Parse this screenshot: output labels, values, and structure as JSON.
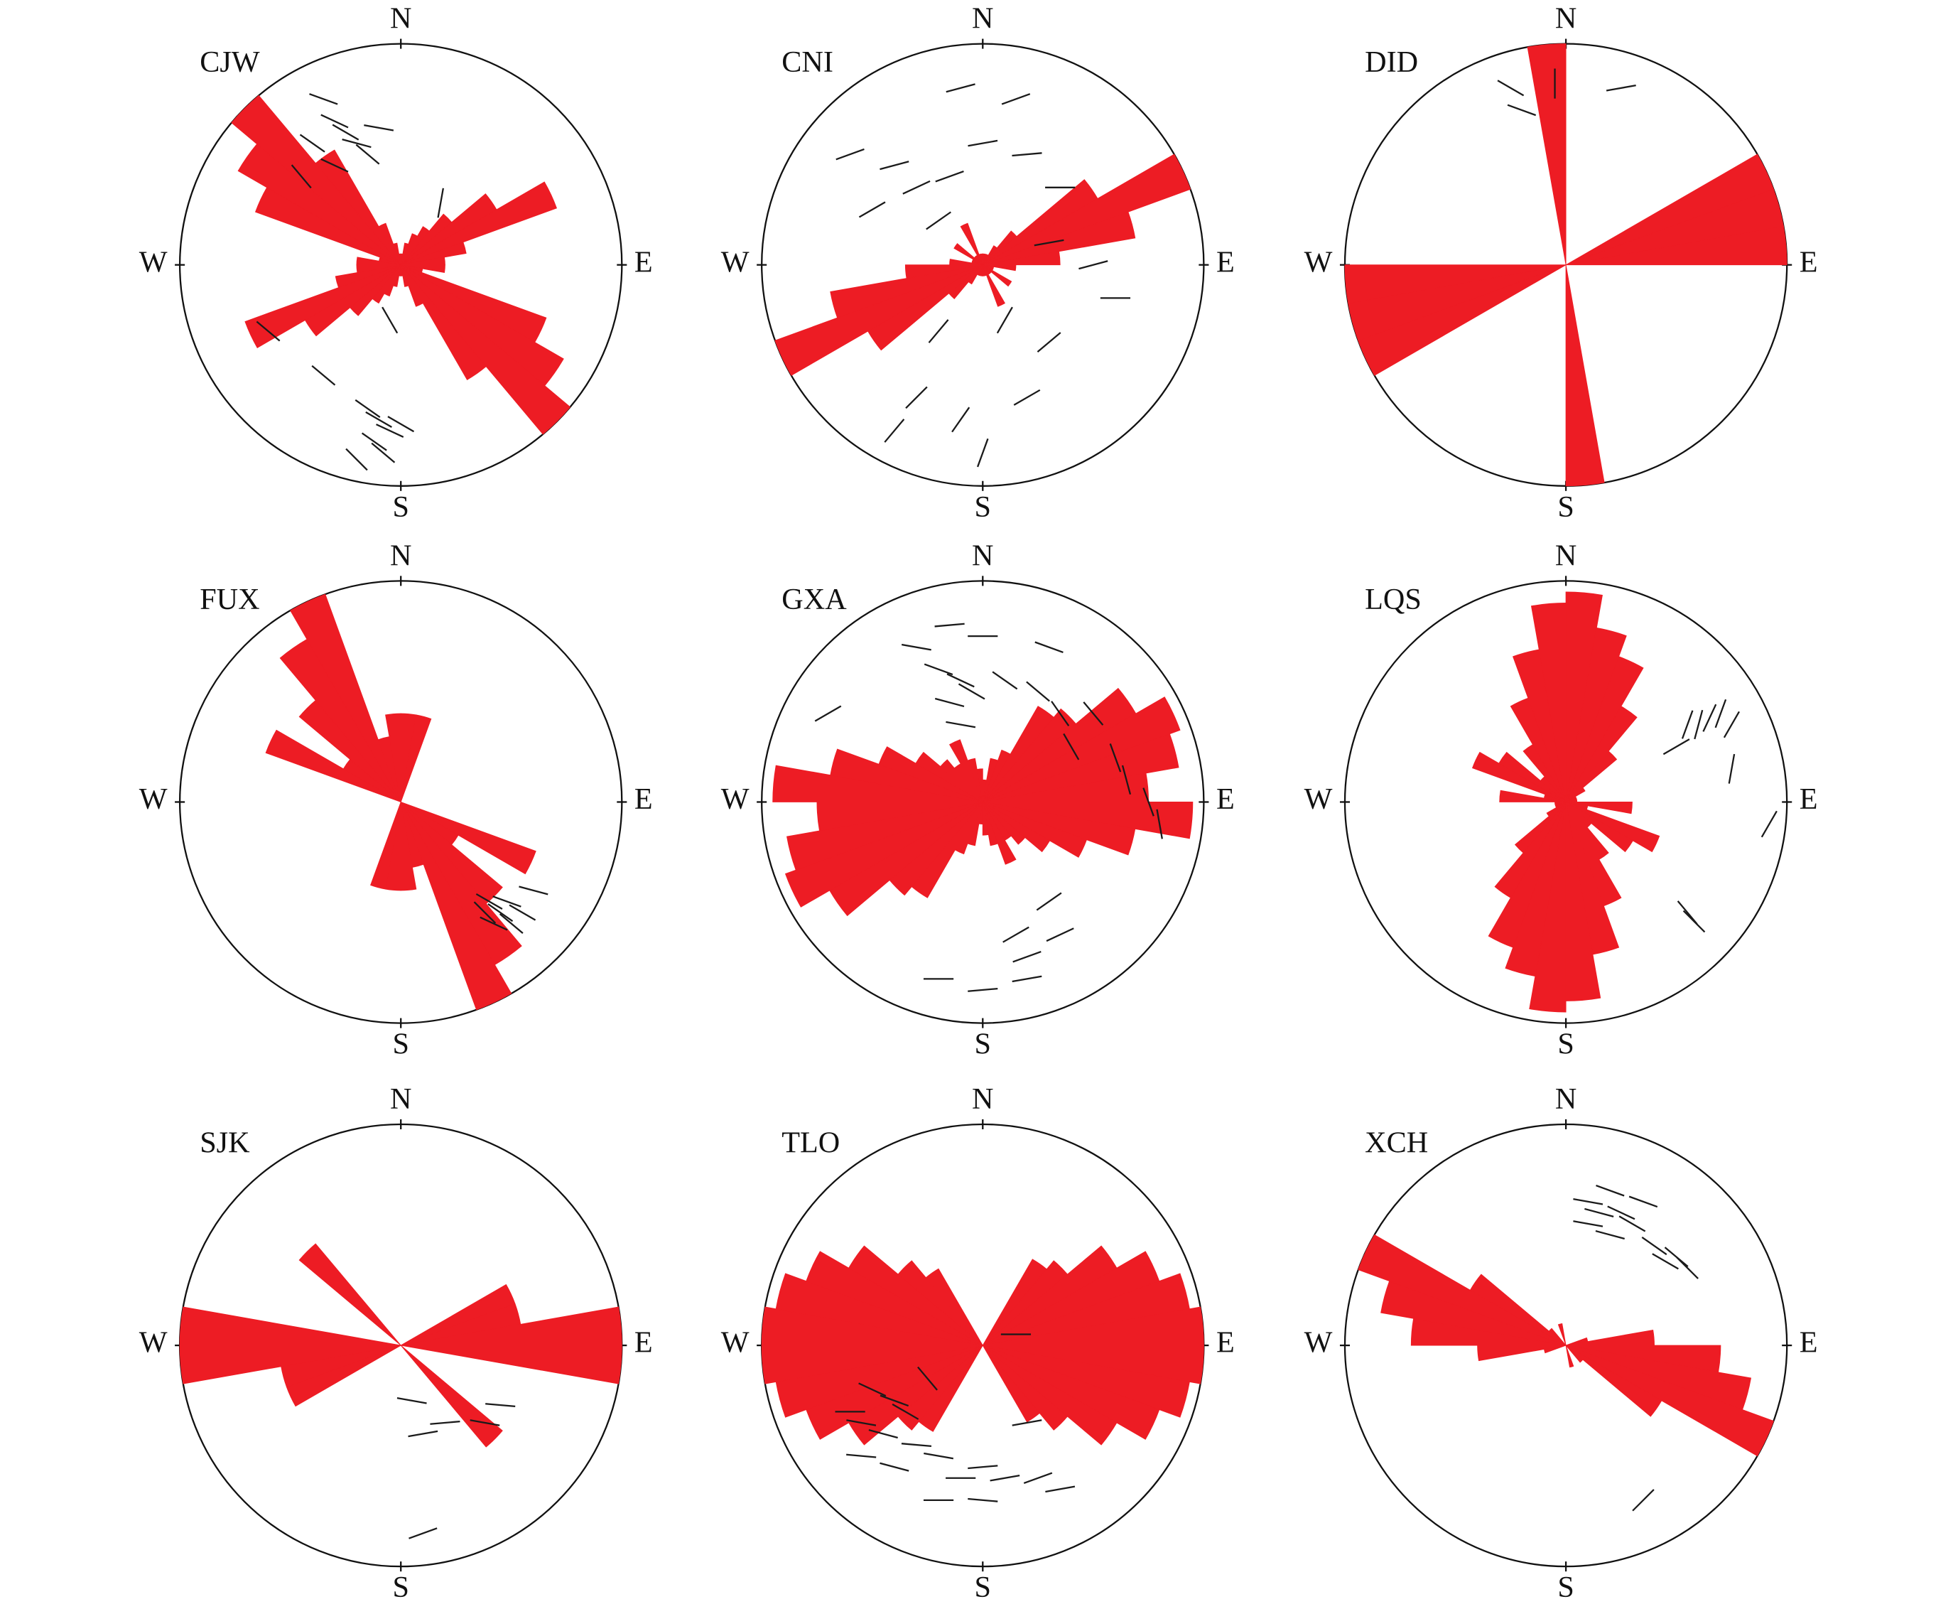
{
  "chart_data": [
    {
      "type": "rose",
      "title": "CJW",
      "compass": [
        "N",
        "E",
        "S",
        "W"
      ],
      "bin_width": 10,
      "color": "#ed1c24",
      "tick_color": "#1a1a1a",
      "radii": [
        0.05,
        0.1,
        0.15,
        0.2,
        0.3,
        0.5,
        0.75,
        0.3,
        0.2,
        0.2,
        0.1,
        0.7,
        0.85,
        1.0,
        0.6,
        0.2,
        0.1,
        0.05
      ],
      "ticks": [
        [
          -0.35,
          0.75,
          110
        ],
        [
          -0.3,
          0.65,
          115
        ],
        [
          -0.25,
          0.6,
          120
        ],
        [
          -0.2,
          0.55,
          105
        ],
        [
          -0.4,
          0.55,
          125
        ],
        [
          -0.15,
          0.5,
          130
        ],
        [
          -0.3,
          0.45,
          115
        ],
        [
          -0.1,
          0.62,
          100
        ],
        [
          -0.45,
          0.4,
          140
        ],
        [
          0.18,
          0.28,
          10
        ],
        [
          -0.05,
          -0.25,
          150
        ],
        [
          -0.35,
          -0.5,
          130
        ],
        [
          -0.15,
          -0.65,
          125
        ],
        [
          -0.1,
          -0.7,
          120
        ],
        [
          -0.05,
          -0.75,
          115
        ],
        [
          -0.12,
          -0.8,
          125
        ],
        [
          -0.08,
          -0.85,
          130
        ],
        [
          0.0,
          -0.72,
          120
        ],
        [
          -0.2,
          -0.88,
          135
        ],
        [
          -0.6,
          -0.3,
          130
        ]
      ]
    },
    {
      "type": "rose",
      "title": "CNI",
      "compass": [
        "N",
        "E",
        "S",
        "W"
      ],
      "bin_width": 10,
      "color": "#ed1c24",
      "tick_color": "#1a1a1a",
      "radii": [
        0.05,
        0.05,
        0.05,
        0.1,
        0.2,
        0.6,
        1.0,
        0.7,
        0.35,
        0.15,
        0.05,
        0.05,
        0.15,
        0.05,
        0.05,
        0.2,
        0.05,
        0.05
      ],
      "ticks": [
        [
          -0.6,
          0.5,
          70
        ],
        [
          -0.4,
          0.45,
          75
        ],
        [
          -0.3,
          0.35,
          65
        ],
        [
          -0.15,
          0.4,
          70
        ],
        [
          0.0,
          0.55,
          80
        ],
        [
          0.2,
          0.5,
          85
        ],
        [
          0.35,
          0.35,
          90
        ],
        [
          -0.5,
          0.25,
          60
        ],
        [
          -0.2,
          0.2,
          55
        ],
        [
          0.3,
          0.1,
          80
        ],
        [
          0.5,
          0.0,
          75
        ],
        [
          0.6,
          -0.15,
          90
        ],
        [
          -0.2,
          -0.3,
          40
        ],
        [
          0.1,
          -0.25,
          30
        ],
        [
          0.3,
          -0.35,
          50
        ],
        [
          -0.3,
          -0.6,
          45
        ],
        [
          -0.1,
          -0.7,
          35
        ],
        [
          0.2,
          -0.6,
          60
        ],
        [
          -0.4,
          -0.75,
          40
        ],
        [
          0.0,
          -0.85,
          20
        ],
        [
          -0.1,
          0.8,
          75
        ],
        [
          0.15,
          0.75,
          70
        ]
      ]
    },
    {
      "type": "rose",
      "title": "DID",
      "compass": [
        "N",
        "E",
        "S",
        "W"
      ],
      "bin_width": 10,
      "color": "#ed1c24",
      "tick_color": "#1a1a1a",
      "radii": [
        0,
        0,
        0,
        0,
        0,
        0,
        1,
        1,
        1,
        0,
        0,
        0,
        0,
        0,
        0,
        0,
        0,
        1
      ],
      "ticks": [
        [
          -0.25,
          0.8,
          120
        ],
        [
          -0.05,
          0.82,
          0
        ],
        [
          0.25,
          0.8,
          80
        ],
        [
          -0.2,
          0.7,
          110
        ]
      ]
    },
    {
      "type": "rose",
      "title": "FUX",
      "compass": [
        "N",
        "E",
        "S",
        "W"
      ],
      "bin_width": 10,
      "color": "#ed1c24",
      "tick_color": "#1a1a1a",
      "radii": [
        0.4,
        0.4,
        0,
        0,
        0,
        0,
        0,
        0,
        0,
        0,
        0,
        0.65,
        0.3,
        0.6,
        0.85,
        1.0,
        0.3,
        0.4
      ],
      "ticks": [
        [
          0.4,
          -0.45,
          120
        ],
        [
          0.45,
          -0.5,
          125
        ],
        [
          0.5,
          -0.55,
          130
        ],
        [
          0.42,
          -0.55,
          115
        ],
        [
          0.48,
          -0.45,
          110
        ],
        [
          0.55,
          -0.5,
          120
        ],
        [
          0.6,
          -0.4,
          105
        ],
        [
          0.38,
          -0.5,
          135
        ]
      ]
    },
    {
      "type": "rose",
      "title": "GXA",
      "compass": [
        "N",
        "E",
        "S",
        "W"
      ],
      "bin_width": 10,
      "color": "#ed1c24",
      "tick_color": "#1a1a1a",
      "radii": [
        0.1,
        0.2,
        0.25,
        0.5,
        0.55,
        0.8,
        0.95,
        0.9,
        0.75,
        0.95,
        0.7,
        0.5,
        0.35,
        0.25,
        0.2,
        0.3,
        0.2,
        0.15
      ],
      "ticks": [
        [
          -0.2,
          0.6,
          110
        ],
        [
          -0.1,
          0.55,
          115
        ],
        [
          -0.15,
          0.45,
          105
        ],
        [
          -0.05,
          0.5,
          120
        ],
        [
          0.1,
          0.55,
          125
        ],
        [
          0.25,
          0.5,
          130
        ],
        [
          0.35,
          0.4,
          145
        ],
        [
          0.4,
          0.25,
          150
        ],
        [
          0.6,
          0.2,
          160
        ],
        [
          0.65,
          0.1,
          165
        ],
        [
          0.75,
          0.0,
          160
        ],
        [
          0.8,
          -0.1,
          170
        ],
        [
          -0.3,
          0.7,
          100
        ],
        [
          0.0,
          0.75,
          90
        ],
        [
          -0.15,
          0.8,
          85
        ],
        [
          0.3,
          0.7,
          110
        ],
        [
          0.15,
          -0.6,
          60
        ],
        [
          0.3,
          -0.45,
          55
        ],
        [
          0.35,
          -0.6,
          65
        ],
        [
          0.2,
          -0.7,
          70
        ],
        [
          -0.2,
          -0.8,
          90
        ],
        [
          0.0,
          -0.85,
          85
        ],
        [
          0.2,
          -0.8,
          80
        ],
        [
          -0.1,
          0.35,
          100
        ],
        [
          0.5,
          0.4,
          140
        ],
        [
          -0.7,
          0.4,
          60
        ]
      ]
    },
    {
      "type": "rose",
      "title": "LQS",
      "compass": [
        "N",
        "E",
        "S",
        "W"
      ],
      "bin_width": 10,
      "color": "#ed1c24",
      "tick_color": "#1a1a1a",
      "radii": [
        0.95,
        0.8,
        0.7,
        0.5,
        0.3,
        0.1,
        0.05,
        0.05,
        0.05,
        0.3,
        0.1,
        0.45,
        0.35,
        0.15,
        0.3,
        0.5,
        0.7,
        0.9
      ],
      "ticks": [
        [
          0.55,
          0.35,
          20
        ],
        [
          0.6,
          0.35,
          15
        ],
        [
          0.65,
          0.38,
          25
        ],
        [
          0.7,
          0.4,
          20
        ],
        [
          0.75,
          0.35,
          30
        ],
        [
          0.5,
          0.25,
          60
        ],
        [
          0.75,
          0.15,
          10
        ],
        [
          0.92,
          -0.1,
          30
        ],
        [
          0.55,
          -0.5,
          140
        ],
        [
          0.58,
          -0.54,
          135
        ]
      ]
    },
    {
      "type": "rose",
      "title": "SJK",
      "compass": [
        "N",
        "E",
        "S",
        "W"
      ],
      "bin_width": 10,
      "color": "#ed1c24",
      "tick_color": "#1a1a1a",
      "radii": [
        0,
        0,
        0,
        0,
        0,
        0,
        0.55,
        0.55,
        1,
        1,
        0,
        0,
        0,
        0.6,
        0,
        0,
        0,
        0
      ],
      "ticks": [
        [
          0.05,
          -0.25,
          100
        ],
        [
          0.45,
          -0.27,
          95
        ],
        [
          0.2,
          -0.35,
          85
        ],
        [
          0.38,
          -0.35,
          100
        ],
        [
          0.1,
          -0.4,
          80
        ],
        [
          0.1,
          -0.85,
          70
        ]
      ]
    },
    {
      "type": "rose",
      "title": "TLO",
      "compass": [
        "N",
        "E",
        "S",
        "W"
      ],
      "bin_width": 10,
      "color": "#ed1c24",
      "tick_color": "#1a1a1a",
      "radii": [
        0,
        0,
        0,
        0.45,
        0.5,
        0.7,
        0.85,
        0.95,
        1.0,
        1.0,
        0.95,
        0.85,
        0.7,
        0.5,
        0.4,
        0,
        0,
        0
      ],
      "ticks": [
        [
          -0.5,
          -0.2,
          115
        ],
        [
          -0.4,
          -0.25,
          110
        ],
        [
          -0.35,
          -0.3,
          120
        ],
        [
          -0.55,
          -0.35,
          100
        ],
        [
          -0.45,
          -0.4,
          105
        ],
        [
          -0.3,
          -0.45,
          95
        ],
        [
          -0.2,
          -0.5,
          100
        ],
        [
          -0.1,
          -0.6,
          90
        ],
        [
          0.0,
          -0.55,
          85
        ],
        [
          0.1,
          -0.6,
          80
        ],
        [
          0.25,
          -0.6,
          70
        ],
        [
          0.35,
          -0.65,
          80
        ],
        [
          -0.2,
          -0.7,
          90
        ],
        [
          0.0,
          -0.7,
          95
        ],
        [
          -0.4,
          -0.55,
          105
        ],
        [
          -0.55,
          -0.5,
          95
        ],
        [
          -0.6,
          -0.3,
          90
        ],
        [
          0.2,
          -0.35,
          80
        ],
        [
          0.15,
          0.05,
          90
        ],
        [
          -0.25,
          -0.15,
          140
        ]
      ]
    },
    {
      "type": "rose",
      "title": "XCH",
      "compass": [
        "N",
        "E",
        "S",
        "W"
      ],
      "bin_width": 10,
      "color": "#ed1c24",
      "tick_color": "#1a1a1a",
      "radii": [
        0,
        0,
        0,
        0,
        0,
        0,
        0,
        0.1,
        0.4,
        0.7,
        0.85,
        1.0,
        0.5,
        0.1,
        0,
        0,
        0.1,
        0
      ],
      "ticks": [
        [
          0.1,
          0.65,
          100
        ],
        [
          0.15,
          0.6,
          105
        ],
        [
          0.2,
          0.7,
          110
        ],
        [
          0.25,
          0.6,
          115
        ],
        [
          0.1,
          0.55,
          100
        ],
        [
          0.3,
          0.55,
          120
        ],
        [
          0.4,
          0.45,
          125
        ],
        [
          0.5,
          0.4,
          130
        ],
        [
          0.55,
          0.35,
          135
        ],
        [
          0.45,
          0.38,
          120
        ],
        [
          0.2,
          0.5,
          105
        ],
        [
          0.35,
          0.65,
          110
        ],
        [
          0.35,
          -0.7,
          45
        ]
      ]
    }
  ]
}
